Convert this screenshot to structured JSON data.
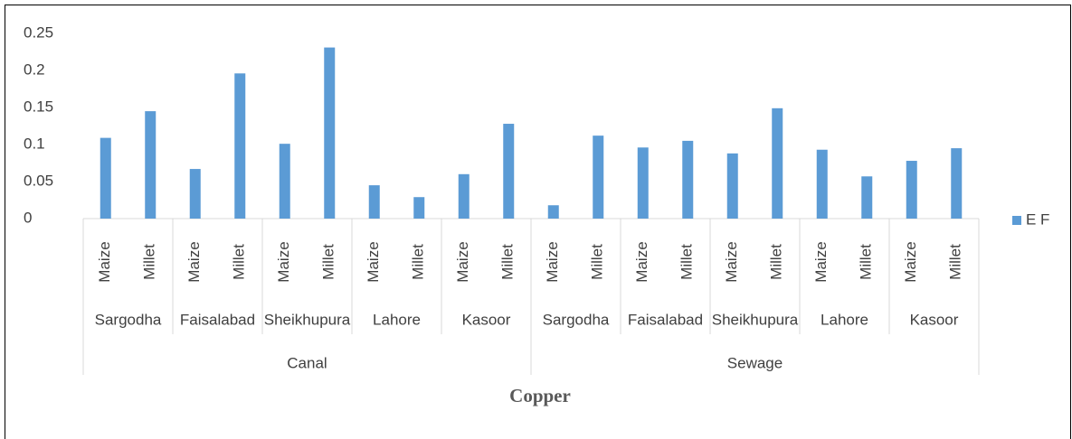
{
  "chart_data": {
    "type": "bar",
    "title": "Copper",
    "categories": [
      "Maize",
      "Millet",
      "Maize",
      "Millet",
      "Maize",
      "Millet",
      "Maize",
      "Millet",
      "Maize",
      "Millet",
      "Maize",
      "Millet",
      "Maize",
      "Millet",
      "Maize",
      "Millet",
      "Maize",
      "Millet",
      "Maize",
      "Millet"
    ],
    "category_levels": [
      [
        "Sargodha",
        "Faisalabad",
        "Sheikhupura",
        "Lahore",
        "Kasoor",
        "Sargodha",
        "Faisalabad",
        "Sheikhupura",
        "Lahore",
        "Kasoor"
      ],
      [
        "Canal",
        "Sewage"
      ]
    ],
    "series": [
      {
        "name": "E F",
        "color": "#5b9bd5",
        "values": [
          0.109,
          0.145,
          0.067,
          0.196,
          0.101,
          0.231,
          0.045,
          0.029,
          0.06,
          0.128,
          0.018,
          0.112,
          0.096,
          0.105,
          0.088,
          0.149,
          0.093,
          0.057,
          0.078,
          0.095
        ]
      }
    ],
    "ylim": [
      0,
      0.25
    ],
    "yticks": [
      0,
      0.05,
      0.1,
      0.15,
      0.2,
      0.25
    ],
    "grid": false,
    "legend": "right"
  }
}
